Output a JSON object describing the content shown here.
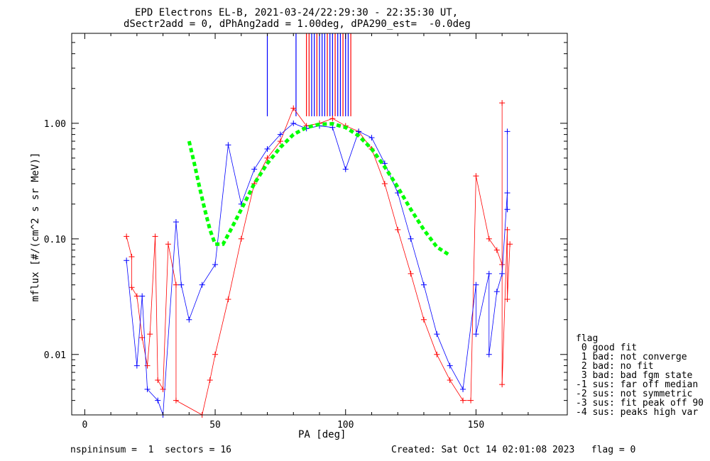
{
  "chart_data": {
    "type": "scatter",
    "title_line1": "EPD Electrons EL-B, 2021-03-24/22:29:30 - 22:35:30 UT,",
    "title_line2": "dSectr2add = 0, dPhAng2add = 1.00deg, dPA290_est=  -0.0deg",
    "xlabel": "PA [deg]",
    "ylabel": "mflux [#/(cm^2 s sr MeV)]",
    "xlim": [
      -5,
      185
    ],
    "ylim": [
      0.003,
      6
    ],
    "y_log_scale": true,
    "x_ticks": [
      0,
      50,
      100,
      150
    ],
    "x_tick_labels": [
      "0",
      "50",
      "100",
      "150"
    ],
    "y_ticks": [
      0.01,
      0.1,
      1.0
    ],
    "y_tick_labels": [
      "0.01",
      "0.10",
      "1.00"
    ],
    "grid": false,
    "colors": {
      "series_red": "#ff0000",
      "series_blue": "#0000ff",
      "fit": "#00ff00",
      "fit_inner": "#000000"
    },
    "fit_curve": {
      "color": "#00ff00",
      "points": [
        [
          40,
          0.7
        ],
        [
          42,
          0.45
        ],
        [
          44,
          0.28
        ],
        [
          46,
          0.18
        ],
        [
          48,
          0.12
        ],
        [
          50,
          0.09
        ],
        [
          53,
          0.09
        ],
        [
          56,
          0.12
        ],
        [
          60,
          0.18
        ],
        [
          65,
          0.3
        ],
        [
          70,
          0.45
        ],
        [
          75,
          0.62
        ],
        [
          80,
          0.8
        ],
        [
          85,
          0.92
        ],
        [
          90,
          0.98
        ],
        [
          95,
          0.99
        ],
        [
          100,
          0.92
        ],
        [
          105,
          0.78
        ],
        [
          110,
          0.6
        ],
        [
          115,
          0.42
        ],
        [
          120,
          0.28
        ],
        [
          125,
          0.18
        ],
        [
          130,
          0.12
        ],
        [
          135,
          0.085
        ],
        [
          140,
          0.072
        ]
      ]
    },
    "series": [
      {
        "color": "red",
        "points": [
          [
            16,
            0.105
          ],
          [
            27,
            0.105
          ],
          [
            18,
            0.07
          ],
          [
            32,
            0.09
          ],
          [
            18,
            0.038
          ],
          [
            35,
            0.04
          ],
          [
            20,
            0.032
          ],
          [
            22,
            0.014
          ],
          [
            25,
            0.015
          ],
          [
            24,
            0.008
          ],
          [
            28,
            0.006
          ],
          [
            30,
            0.005
          ],
          [
            35,
            0.004
          ],
          [
            45,
            0.003
          ],
          [
            48,
            0.006
          ],
          [
            50,
            0.01
          ],
          [
            55,
            0.03
          ],
          [
            60,
            0.1
          ],
          [
            65,
            0.3
          ],
          [
            70,
            0.5
          ],
          [
            75,
            0.7
          ],
          [
            80,
            1.35
          ],
          [
            85,
            0.95
          ],
          [
            90,
            1.0
          ],
          [
            95,
            1.1
          ],
          [
            100,
            0.95
          ],
          [
            105,
            0.85
          ],
          [
            110,
            0.6
          ],
          [
            115,
            0.3
          ],
          [
            120,
            0.12
          ],
          [
            125,
            0.05
          ],
          [
            130,
            0.02
          ],
          [
            135,
            0.01
          ],
          [
            140,
            0.006
          ],
          [
            145,
            0.004
          ],
          [
            148,
            0.004
          ],
          [
            150,
            0.35
          ],
          [
            155,
            0.1
          ],
          [
            158,
            0.08
          ],
          [
            160,
            0.06
          ],
          [
            162,
            0.12
          ],
          [
            163,
            0.09
          ],
          [
            160,
            1.5
          ],
          [
            162,
            0.03
          ],
          [
            160,
            0.0055
          ]
        ]
      },
      {
        "color": "blue",
        "points": [
          [
            16,
            0.065
          ],
          [
            22,
            0.032
          ],
          [
            20,
            0.008
          ],
          [
            24,
            0.005
          ],
          [
            28,
            0.004
          ],
          [
            30,
            0.003
          ],
          [
            35,
            0.14
          ],
          [
            37,
            0.04
          ],
          [
            40,
            0.02
          ],
          [
            45,
            0.04
          ],
          [
            50,
            0.06
          ],
          [
            55,
            0.65
          ],
          [
            60,
            0.2
          ],
          [
            65,
            0.4
          ],
          [
            70,
            0.6
          ],
          [
            75,
            0.8
          ],
          [
            80,
            1.0
          ],
          [
            85,
            0.9
          ],
          [
            90,
            0.95
          ],
          [
            95,
            0.92
          ],
          [
            100,
            0.4
          ],
          [
            105,
            0.85
          ],
          [
            110,
            0.75
          ],
          [
            115,
            0.45
          ],
          [
            120,
            0.25
          ],
          [
            125,
            0.1
          ],
          [
            130,
            0.04
          ],
          [
            135,
            0.015
          ],
          [
            140,
            0.008
          ],
          [
            145,
            0.005
          ],
          [
            150,
            0.04
          ],
          [
            155,
            0.05
          ],
          [
            158,
            0.035
          ],
          [
            160,
            0.05
          ],
          [
            162,
            0.25
          ],
          [
            162,
            0.85
          ],
          [
            162,
            0.18
          ],
          [
            150,
            0.015
          ],
          [
            155,
            0.01
          ]
        ]
      }
    ],
    "spikes": [
      {
        "color": "blue",
        "x": 70
      },
      {
        "color": "blue",
        "x": 81
      },
      {
        "color": "red",
        "x": 85
      },
      {
        "color": "red",
        "x": 86
      },
      {
        "color": "blue",
        "x": 87
      },
      {
        "color": "blue",
        "x": 88
      },
      {
        "color": "red",
        "x": 89
      },
      {
        "color": "blue",
        "x": 90
      },
      {
        "color": "blue",
        "x": 91
      },
      {
        "color": "blue",
        "x": 92
      },
      {
        "color": "red",
        "x": 93
      },
      {
        "color": "blue",
        "x": 94
      },
      {
        "color": "blue",
        "x": 95
      },
      {
        "color": "red",
        "x": 96
      },
      {
        "color": "blue",
        "x": 97
      },
      {
        "color": "blue",
        "x": 98
      },
      {
        "color": "red",
        "x": 99
      },
      {
        "color": "blue",
        "x": 100
      },
      {
        "color": "blue",
        "x": 101
      },
      {
        "color": "red",
        "x": 102
      }
    ]
  },
  "legend": {
    "title": "flag",
    "items": [
      " 0 good fit",
      " 1 bad: not converge",
      " 2 bad: no fit",
      " 3 bad: bad fgm state",
      "-1 sus: far off median",
      "-2 sus: not symmetric",
      "-3 sus: fit peak off 90",
      "-4 sus: peaks high var"
    ]
  },
  "footer": {
    "left": "nspininsum =  1  sectors = 16",
    "right": "Created: Sat Oct 14 02:01:08 2023   flag = 0"
  }
}
